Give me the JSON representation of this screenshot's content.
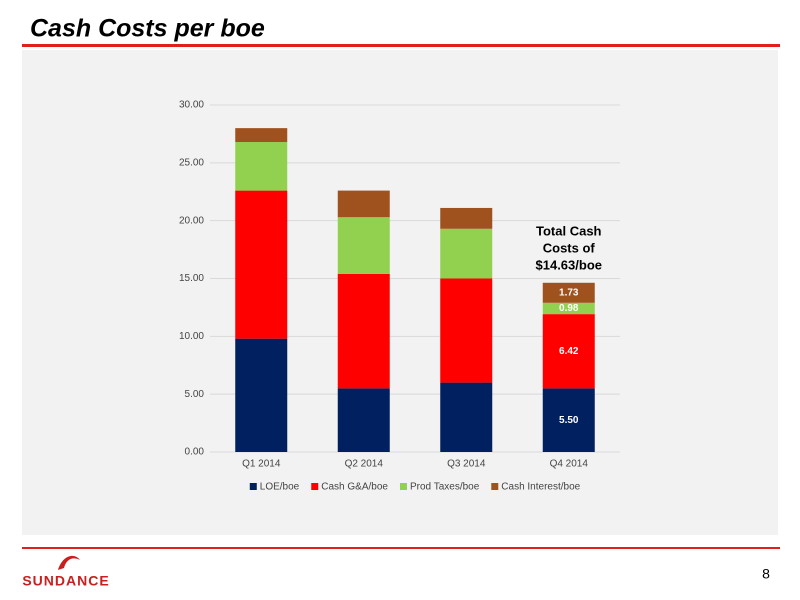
{
  "chart_data": {
    "type": "stacked_bar",
    "title": "Cash Costs per boe",
    "categories": [
      "Q1 2014",
      "Q2 2014",
      "Q3 2014",
      "Q4 2014"
    ],
    "series": [
      {
        "name": "LOE/boe",
        "color": "#002060",
        "values": [
          9.8,
          5.5,
          6.0,
          5.5
        ],
        "value_labels": [
          null,
          null,
          null,
          "5.50"
        ]
      },
      {
        "name": "Cash G&A/boe",
        "color": "#ff0000",
        "values": [
          12.8,
          9.9,
          9.0,
          6.42
        ],
        "value_labels": [
          null,
          null,
          null,
          "6.42"
        ]
      },
      {
        "name": "Prod Taxes/boe",
        "color": "#92d050",
        "values": [
          4.2,
          4.9,
          4.3,
          0.98
        ],
        "value_labels": [
          null,
          null,
          null,
          "0.98"
        ]
      },
      {
        "name": "Cash Interest/boe",
        "color": "#a0521e",
        "values": [
          1.2,
          2.3,
          1.8,
          1.73
        ],
        "value_labels": [
          null,
          null,
          null,
          "1.73"
        ]
      }
    ],
    "ylim": [
      0,
      30
    ],
    "yticks": [
      {
        "value": 0,
        "label": "0.00"
      },
      {
        "value": 5,
        "label": "5.00"
      },
      {
        "value": 10,
        "label": "10.00"
      },
      {
        "value": 15,
        "label": "15.00"
      },
      {
        "value": 20,
        "label": "20.00"
      },
      {
        "value": 25,
        "label": "25.00"
      },
      {
        "value": 30,
        "label": "30.00"
      }
    ],
    "grid": true,
    "legend": "bottom",
    "annotation": [
      "Total Cash",
      "Costs of",
      "$14.63/boe"
    ]
  },
  "footer": {
    "logo": "SUNDANCE",
    "page_number": "8"
  }
}
